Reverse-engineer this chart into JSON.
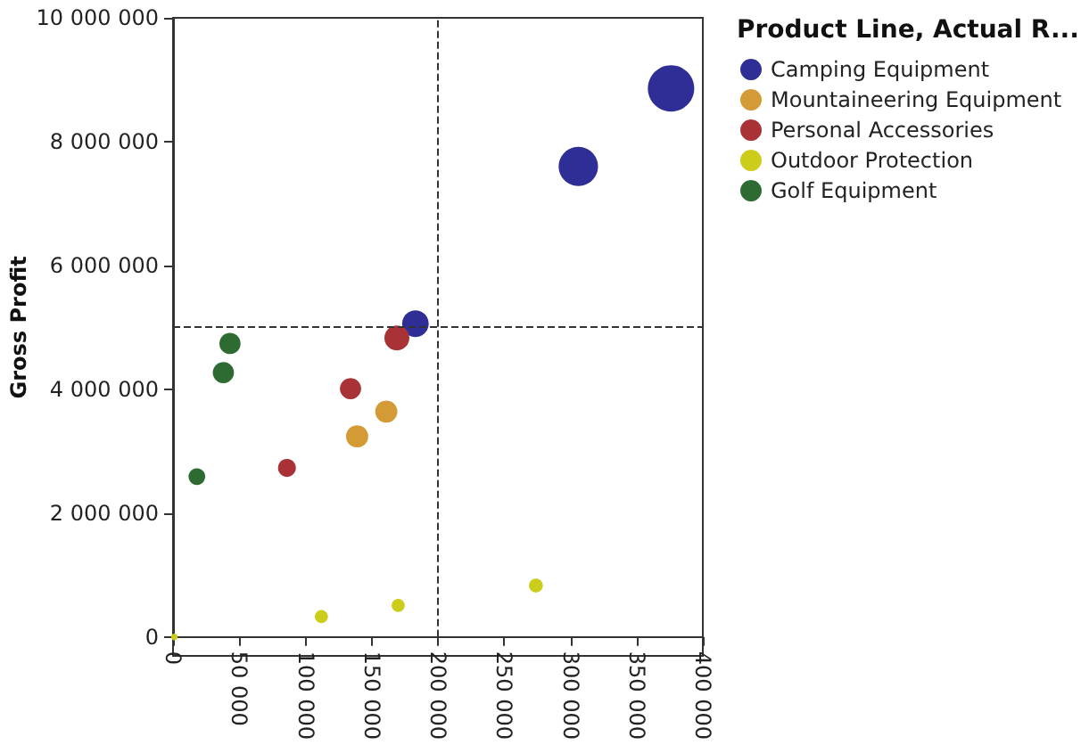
{
  "chart_data": {
    "type": "bubble",
    "ylabel": "Gross Profit",
    "legend_title": "Product Line, Actual R...",
    "legend": "top right",
    "marker": "circle",
    "xlim": [
      0,
      400000
    ],
    "ylim": [
      0,
      10000000
    ],
    "xticks": [
      0,
      {
        "value": 50000,
        "label": "50 000"
      },
      {
        "value": 100000,
        "label": "100 000"
      },
      {
        "value": 150000,
        "label": "150 000"
      },
      {
        "value": 200000,
        "label": "200 000"
      },
      {
        "value": 250000,
        "label": "250 000"
      },
      {
        "value": 300000,
        "label": "300 000"
      },
      {
        "value": 350000,
        "label": "350 000"
      },
      {
        "value": 400000,
        "label": "400 000"
      }
    ],
    "yticks": [
      0,
      {
        "value": 2000000,
        "label": "2 000 000"
      },
      {
        "value": 4000000,
        "label": "4 000 000"
      },
      {
        "value": 6000000,
        "label": "6 000 000"
      },
      {
        "value": 8000000,
        "label": "8 000 000"
      },
      {
        "value": 10000000,
        "label": "10 000 000"
      }
    ],
    "ref_lines": [
      {
        "axis": "x",
        "value": 200000,
        "color": "#333333",
        "line_style": "dashed"
      },
      {
        "axis": "y",
        "value": 5000000,
        "color": "#333333",
        "line_style": "dashed"
      }
    ],
    "series": [
      {
        "name": "Camping Equipment",
        "color": "#2e2e96",
        "x": [
          376000,
          306000,
          183000
        ],
        "values": [
          8860000,
          7600000,
          5060000
        ],
        "sizes": [
          1,
          0.72,
          0.33
        ]
      },
      {
        "name": "Mountaineering Equipment",
        "color": "#d49a35",
        "x": [
          161000,
          139000
        ],
        "values": [
          3640000,
          3240000
        ],
        "sizes": [
          0.23,
          0.23
        ]
      },
      {
        "name": "Personal Accessories",
        "color": "#a83236",
        "x": [
          169000,
          134000,
          86000
        ],
        "values": [
          4830000,
          4010000,
          2730000
        ],
        "sizes": [
          0.29,
          0.21,
          0.15
        ]
      },
      {
        "name": "Outdoor Protection",
        "color": "#cccc1a",
        "x": [
          274000,
          170000,
          112000,
          1000
        ],
        "values": [
          830000,
          510000,
          330000,
          0
        ],
        "sizes": [
          0.09,
          0.08,
          0.08,
          0.02
        ]
      },
      {
        "name": "Golf Equipment",
        "color": "#2e6b32",
        "x": [
          43000,
          38000,
          18000
        ],
        "values": [
          4740000,
          4270000,
          2590000
        ],
        "sizes": [
          0.21,
          0.21,
          0.13
        ]
      }
    ]
  }
}
